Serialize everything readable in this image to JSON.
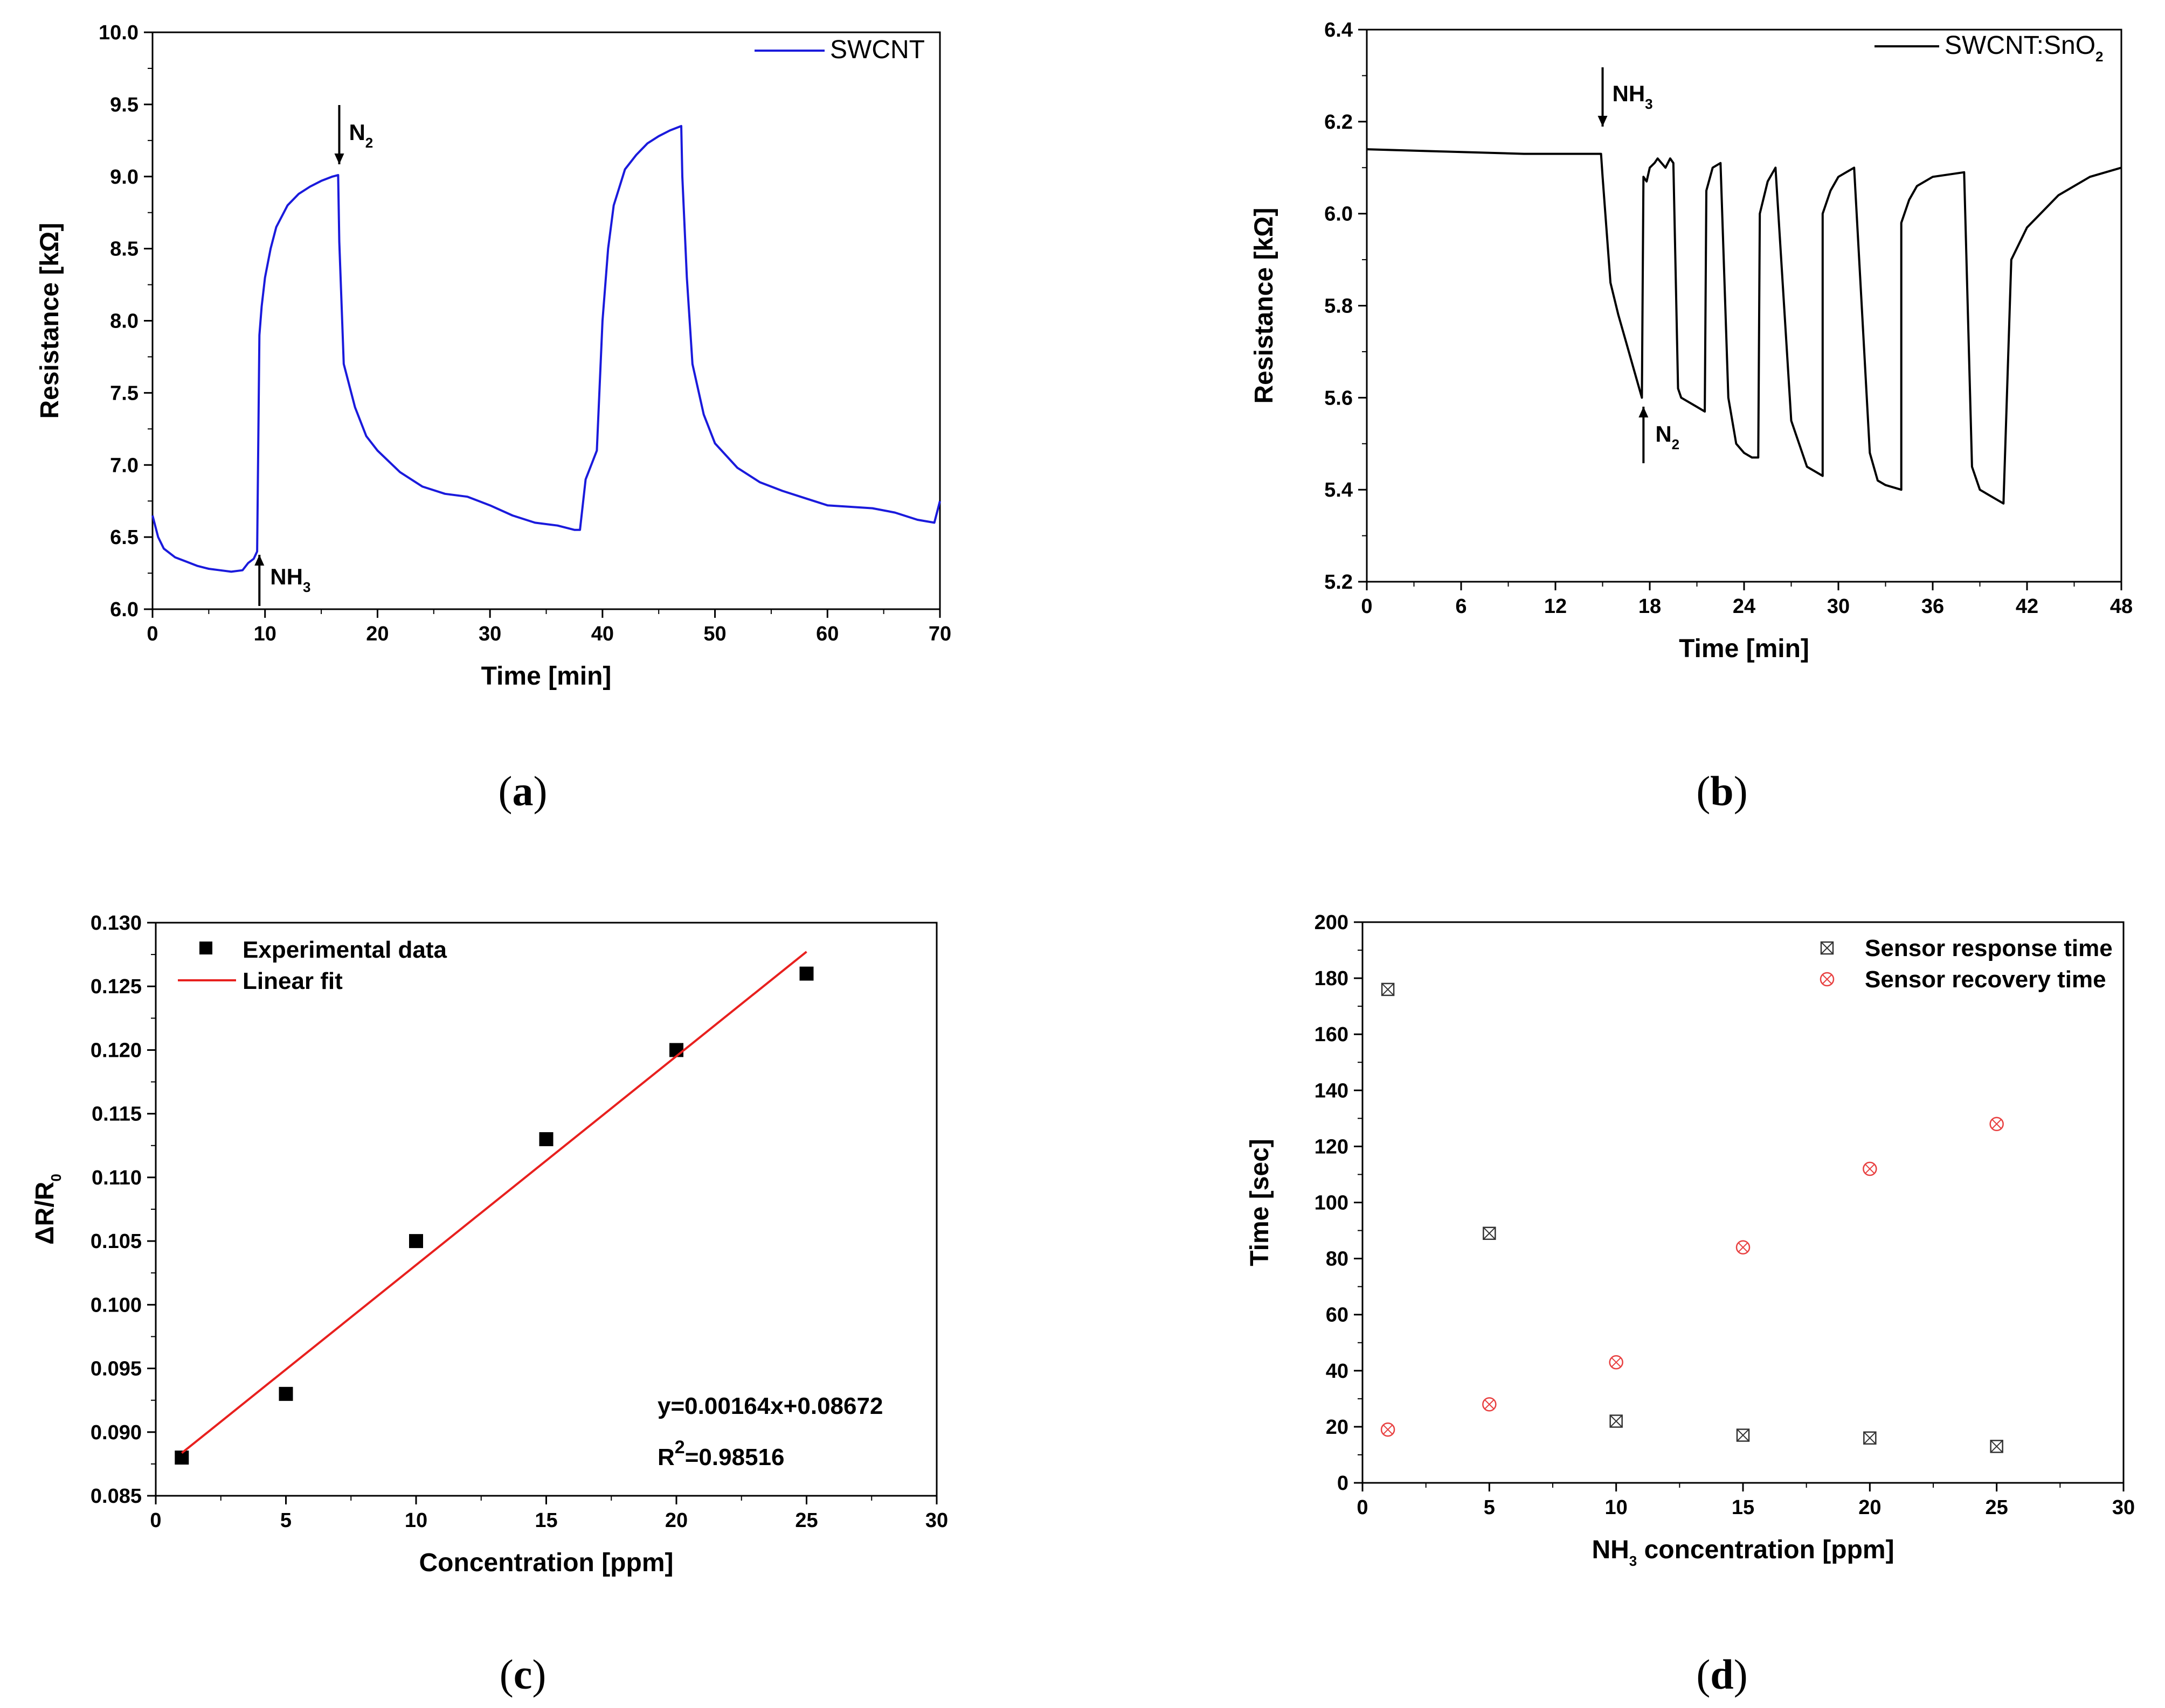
{
  "chart_data": [
    {
      "id": "a",
      "type": "line",
      "xlabel": "Time [min]",
      "ylabel": "Resistance [kΩ]",
      "xlim": [
        0,
        70
      ],
      "ylim": [
        6.0,
        10.0
      ],
      "xticks": [
        "0",
        "10",
        "20",
        "30",
        "40",
        "50",
        "60",
        "70"
      ],
      "yticks": [
        "6.0",
        "6.5",
        "7.0",
        "7.5",
        "8.0",
        "8.5",
        "9.0",
        "9.5",
        "10.0"
      ],
      "series": [
        {
          "name": "SWCNT",
          "color": "#1a1adc",
          "x": [
            0,
            0.5,
            1,
            2,
            3,
            4,
            5,
            6,
            7,
            8,
            8.5,
            9,
            9.3,
            9.5,
            9.7,
            10,
            10.5,
            11,
            12,
            13,
            14,
            15,
            16,
            16.5,
            16.6,
            17,
            18,
            19,
            20,
            22,
            24,
            26,
            28,
            30,
            32,
            34,
            36,
            37.5,
            38,
            38.5,
            39,
            39.5,
            40,
            40.5,
            41,
            42,
            43,
            44,
            45,
            46,
            47,
            47.1,
            47.5,
            48,
            49,
            50,
            52,
            54,
            56,
            58,
            60,
            62,
            64,
            66,
            68,
            69.5,
            70
          ],
          "values": [
            6.65,
            6.5,
            6.42,
            6.36,
            6.33,
            6.3,
            6.28,
            6.27,
            6.26,
            6.27,
            6.32,
            6.35,
            6.4,
            7.9,
            8.1,
            8.3,
            8.5,
            8.65,
            8.8,
            8.88,
            8.93,
            8.97,
            9.0,
            9.01,
            8.55,
            7.7,
            7.4,
            7.2,
            7.1,
            6.95,
            6.85,
            6.8,
            6.78,
            6.72,
            6.65,
            6.6,
            6.58,
            6.55,
            6.55,
            6.9,
            7.0,
            7.1,
            8.0,
            8.5,
            8.8,
            9.05,
            9.15,
            9.23,
            9.28,
            9.32,
            9.35,
            9.0,
            8.3,
            7.7,
            7.35,
            7.15,
            6.98,
            6.88,
            6.82,
            6.77,
            6.72,
            6.71,
            6.7,
            6.67,
            6.62,
            6.6,
            6.75
          ]
        }
      ],
      "annotations": [
        {
          "base": "NH",
          "sub": "3",
          "x": 9.5,
          "direction": "up"
        },
        {
          "base": "N",
          "sub": "2",
          "x": 16.6,
          "direction": "down"
        }
      ],
      "caption": "a"
    },
    {
      "id": "b",
      "type": "line",
      "xlabel": "Time [min]",
      "ylabel": "Resistance [kΩ]",
      "xlim": [
        0,
        48
      ],
      "ylim": [
        5.2,
        6.4
      ],
      "xticks": [
        "0",
        "6",
        "12",
        "18",
        "24",
        "30",
        "36",
        "42",
        "48"
      ],
      "yticks": [
        "5.2",
        "5.4",
        "5.6",
        "5.8",
        "6.0",
        "6.2",
        "6.4"
      ],
      "series": [
        {
          "name": "SWCNT:SnO",
          "name_sub": "2",
          "color": "#000000",
          "x": [
            0,
            5,
            10,
            14.9,
            15,
            15.5,
            16,
            16.5,
            17,
            17.5,
            17.6,
            17.8,
            18,
            18.3,
            18.5,
            19,
            19.3,
            19.5,
            19.8,
            20,
            21,
            21.5,
            21.6,
            22,
            22.5,
            23,
            23.5,
            24,
            24.5,
            24.9,
            25,
            25.5,
            26,
            27,
            28,
            28.5,
            29,
            29,
            29.5,
            30,
            31,
            32,
            32.5,
            33,
            34,
            34,
            34.5,
            35,
            36,
            38,
            38.5,
            39,
            40,
            40.5,
            41,
            42,
            44,
            46,
            48
          ],
          "values": [
            6.14,
            6.135,
            6.13,
            6.13,
            6.08,
            5.85,
            5.78,
            5.72,
            5.66,
            5.6,
            6.08,
            6.07,
            6.1,
            6.11,
            6.12,
            6.1,
            6.12,
            6.11,
            5.62,
            5.6,
            5.58,
            5.57,
            6.05,
            6.1,
            6.11,
            5.6,
            5.5,
            5.48,
            5.47,
            5.47,
            6.0,
            6.07,
            6.1,
            5.55,
            5.45,
            5.44,
            5.43,
            6.0,
            6.05,
            6.08,
            6.1,
            5.48,
            5.42,
            5.41,
            5.4,
            5.98,
            6.03,
            6.06,
            6.08,
            6.09,
            5.45,
            5.4,
            5.38,
            5.37,
            5.9,
            5.97,
            6.04,
            6.08,
            6.1
          ]
        }
      ],
      "annotations": [
        {
          "base": "NH",
          "sub": "3",
          "x": 15,
          "direction": "down"
        },
        {
          "base": "N",
          "sub": "2",
          "x": 17.6,
          "direction": "up"
        }
      ],
      "caption": "b"
    },
    {
      "id": "c",
      "type": "scatter",
      "xlabel": "Concentration [ppm]",
      "ylabel_base": "ΔR/R",
      "ylabel_sub": "0",
      "xlim": [
        0,
        30
      ],
      "ylim": [
        0.085,
        0.13
      ],
      "xticks": [
        "0",
        "5",
        "10",
        "15",
        "20",
        "25",
        "30"
      ],
      "yticks": [
        "0.085",
        "0.090",
        "0.095",
        "0.100",
        "0.105",
        "0.110",
        "0.115",
        "0.120",
        "0.125",
        "0.130"
      ],
      "series": [
        {
          "name": "Experimental data",
          "kind": "points",
          "color": "#000000",
          "x": [
            1,
            5,
            10,
            15,
            20,
            25
          ],
          "values": [
            0.088,
            0.093,
            0.105,
            0.113,
            0.12,
            0.126
          ]
        },
        {
          "name": "Linear fit",
          "kind": "line",
          "color": "#e8201e",
          "x": [
            1,
            25
          ],
          "values": [
            0.08836,
            0.12772
          ]
        }
      ],
      "equation": "y=0.00164x+0.08672",
      "r2_base": "R",
      "r2_sup": "2",
      "r2_value": "=0.98516",
      "caption": "c"
    },
    {
      "id": "d",
      "type": "scatter",
      "xlabel_pre": "NH",
      "xlabel_sub": "3",
      "xlabel_post": " concentration [ppm]",
      "ylabel": "Time [sec]",
      "xlim": [
        0,
        30
      ],
      "ylim": [
        0,
        200
      ],
      "xticks": [
        "0",
        "5",
        "10",
        "15",
        "20",
        "25",
        "30"
      ],
      "yticks": [
        "0",
        "20",
        "40",
        "60",
        "80",
        "100",
        "120",
        "140",
        "160",
        "180",
        "200"
      ],
      "series": [
        {
          "name": "Sensor response time",
          "marker": "square-x",
          "color": "#333333",
          "x": [
            1,
            5,
            10,
            15,
            20,
            25
          ],
          "values": [
            176,
            89,
            22,
            17,
            16,
            13
          ]
        },
        {
          "name": "Sensor recovery time",
          "marker": "circle-x",
          "color": "#e84040",
          "x": [
            1,
            5,
            10,
            15,
            20,
            25
          ],
          "values": [
            19,
            28,
            43,
            84,
            112,
            128
          ]
        }
      ],
      "caption": "d"
    }
  ]
}
